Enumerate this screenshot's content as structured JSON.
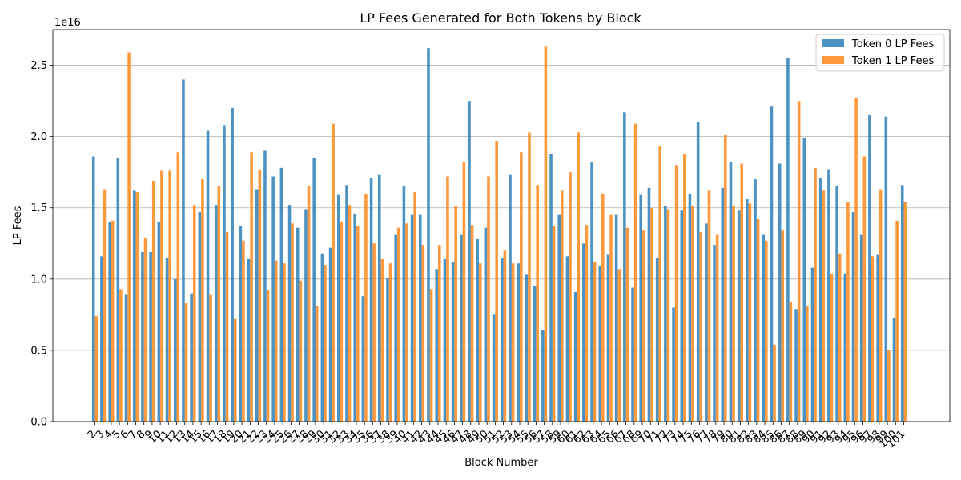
{
  "chart_data": {
    "type": "bar",
    "title": "LP Fees Generated for Both Tokens by Block",
    "xlabel": "Block Number",
    "ylabel": "LP Fees",
    "y_scale_label": "1e16",
    "ylim": [
      0,
      2.75
    ],
    "yticks": [
      "0.0",
      "0.5",
      "1.0",
      "1.5",
      "2.0",
      "2.5"
    ],
    "grid": "y",
    "legend_position": "top-right",
    "categories": [
      "2",
      "3",
      "4",
      "5",
      "6",
      "7",
      "8",
      "9",
      "10",
      "11",
      "12",
      "13",
      "14",
      "15",
      "16",
      "17",
      "18",
      "19",
      "20",
      "21",
      "22",
      "23",
      "24",
      "25",
      "26",
      "27",
      "28",
      "29",
      "30",
      "31",
      "32",
      "33",
      "34",
      "35",
      "36",
      "37",
      "38",
      "39",
      "40",
      "41",
      "42",
      "43",
      "44",
      "45",
      "46",
      "47",
      "48",
      "49",
      "50",
      "51",
      "52",
      "53",
      "54",
      "55",
      "56",
      "57",
      "58",
      "59",
      "60",
      "61",
      "62",
      "63",
      "64",
      "65",
      "66",
      "67",
      "68",
      "69",
      "70",
      "71",
      "72",
      "73",
      "74",
      "75",
      "76",
      "77",
      "78",
      "79",
      "80",
      "81",
      "82",
      "83",
      "84",
      "85",
      "86",
      "87",
      "88",
      "89",
      "90",
      "91",
      "92",
      "93",
      "94",
      "95",
      "96",
      "97",
      "98",
      "99",
      "100",
      "101"
    ],
    "series": [
      {
        "name": "Token 0 LP Fees",
        "color": "#1f77b4",
        "values": [
          1.86,
          1.16,
          1.4,
          1.85,
          0.89,
          1.62,
          1.19,
          1.19,
          1.4,
          1.15,
          1.0,
          2.4,
          0.9,
          1.47,
          2.04,
          1.52,
          2.08,
          2.2,
          1.37,
          1.14,
          1.63,
          1.9,
          1.72,
          1.78,
          1.52,
          1.36,
          1.49,
          1.85,
          1.18,
          1.22,
          1.59,
          1.66,
          1.46,
          0.88,
          1.71,
          1.73,
          1.01,
          1.31,
          1.65,
          1.45,
          1.45,
          2.62,
          1.07,
          1.14,
          1.12,
          1.31,
          2.25,
          1.28,
          1.36,
          0.75,
          1.15,
          1.73,
          1.11,
          1.03,
          0.95,
          0.64,
          1.88,
          1.45,
          1.16,
          0.91,
          1.25,
          1.82,
          1.09,
          1.17,
          1.45,
          2.17,
          0.94,
          1.59,
          1.64,
          1.15,
          1.51,
          0.8,
          1.48,
          1.6,
          2.1,
          1.39,
          1.24,
          1.64,
          1.82,
          1.48,
          1.56,
          1.7,
          1.31,
          2.21,
          1.81,
          2.55,
          0.79,
          1.99,
          1.08,
          1.71,
          1.77,
          1.65,
          1.04,
          1.47,
          1.31,
          2.15,
          1.17,
          2.14,
          0.73,
          1.66
        ]
      },
      {
        "name": "Token 1 LP Fees",
        "color": "#ff7f0e",
        "values": [
          0.74,
          1.63,
          1.41,
          0.93,
          2.59,
          1.61,
          1.29,
          1.69,
          1.76,
          1.76,
          1.89,
          0.83,
          1.52,
          1.7,
          0.89,
          1.65,
          1.33,
          0.72,
          1.27,
          1.89,
          1.77,
          0.92,
          1.13,
          1.11,
          1.39,
          0.99,
          1.65,
          0.81,
          1.1,
          2.09,
          1.4,
          1.52,
          1.37,
          1.6,
          1.25,
          1.14,
          1.11,
          1.36,
          1.39,
          1.61,
          1.24,
          0.93,
          1.24,
          1.72,
          1.51,
          1.82,
          1.38,
          1.11,
          1.72,
          1.97,
          1.2,
          1.11,
          1.89,
          2.03,
          1.66,
          2.63,
          1.37,
          1.62,
          1.75,
          2.03,
          1.38,
          1.12,
          1.6,
          1.45,
          1.07,
          1.36,
          2.09,
          1.34,
          1.5,
          1.93,
          1.49,
          1.8,
          1.88,
          1.51,
          1.33,
          1.62,
          1.31,
          2.01,
          1.51,
          1.81,
          1.53,
          1.42,
          1.27,
          0.54,
          1.34,
          0.84,
          2.25,
          0.81,
          1.78,
          1.62,
          1.04,
          1.18,
          1.54,
          2.27,
          1.86,
          1.16,
          1.63,
          0.5,
          1.41,
          1.54
        ]
      }
    ]
  }
}
